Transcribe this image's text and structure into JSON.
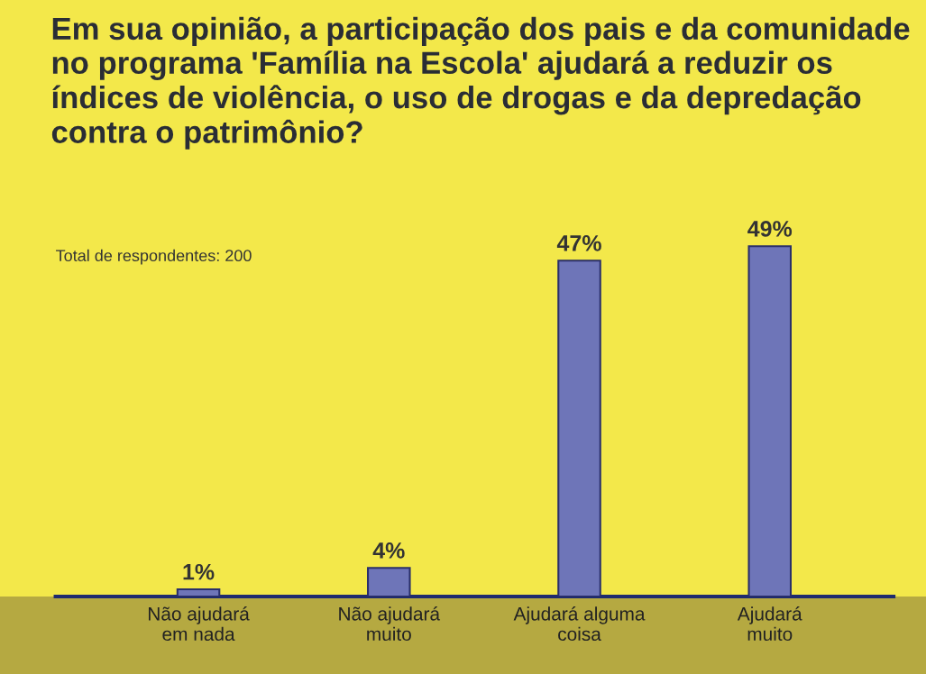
{
  "chart_data": {
    "type": "bar",
    "title": "Em sua opinião, a participação dos pais e da comunidade no programa 'Família na Escola' ajudará a reduzir os índices de violência, o uso de drogas e da depredação contra o patrimônio?",
    "categories": [
      "Não ajudará\nem nada",
      "Não ajudará\nmuito",
      "Ajudará alguma\ncoisa",
      "Ajudará\nmuito"
    ],
    "values": [
      1,
      4,
      47,
      49
    ],
    "value_labels": [
      "1%",
      "4%",
      "47%",
      "49%"
    ],
    "color": "#6e75b8",
    "annotations": [
      "Total de respondentes: 200"
    ],
    "grid": false,
    "legend": false
  }
}
